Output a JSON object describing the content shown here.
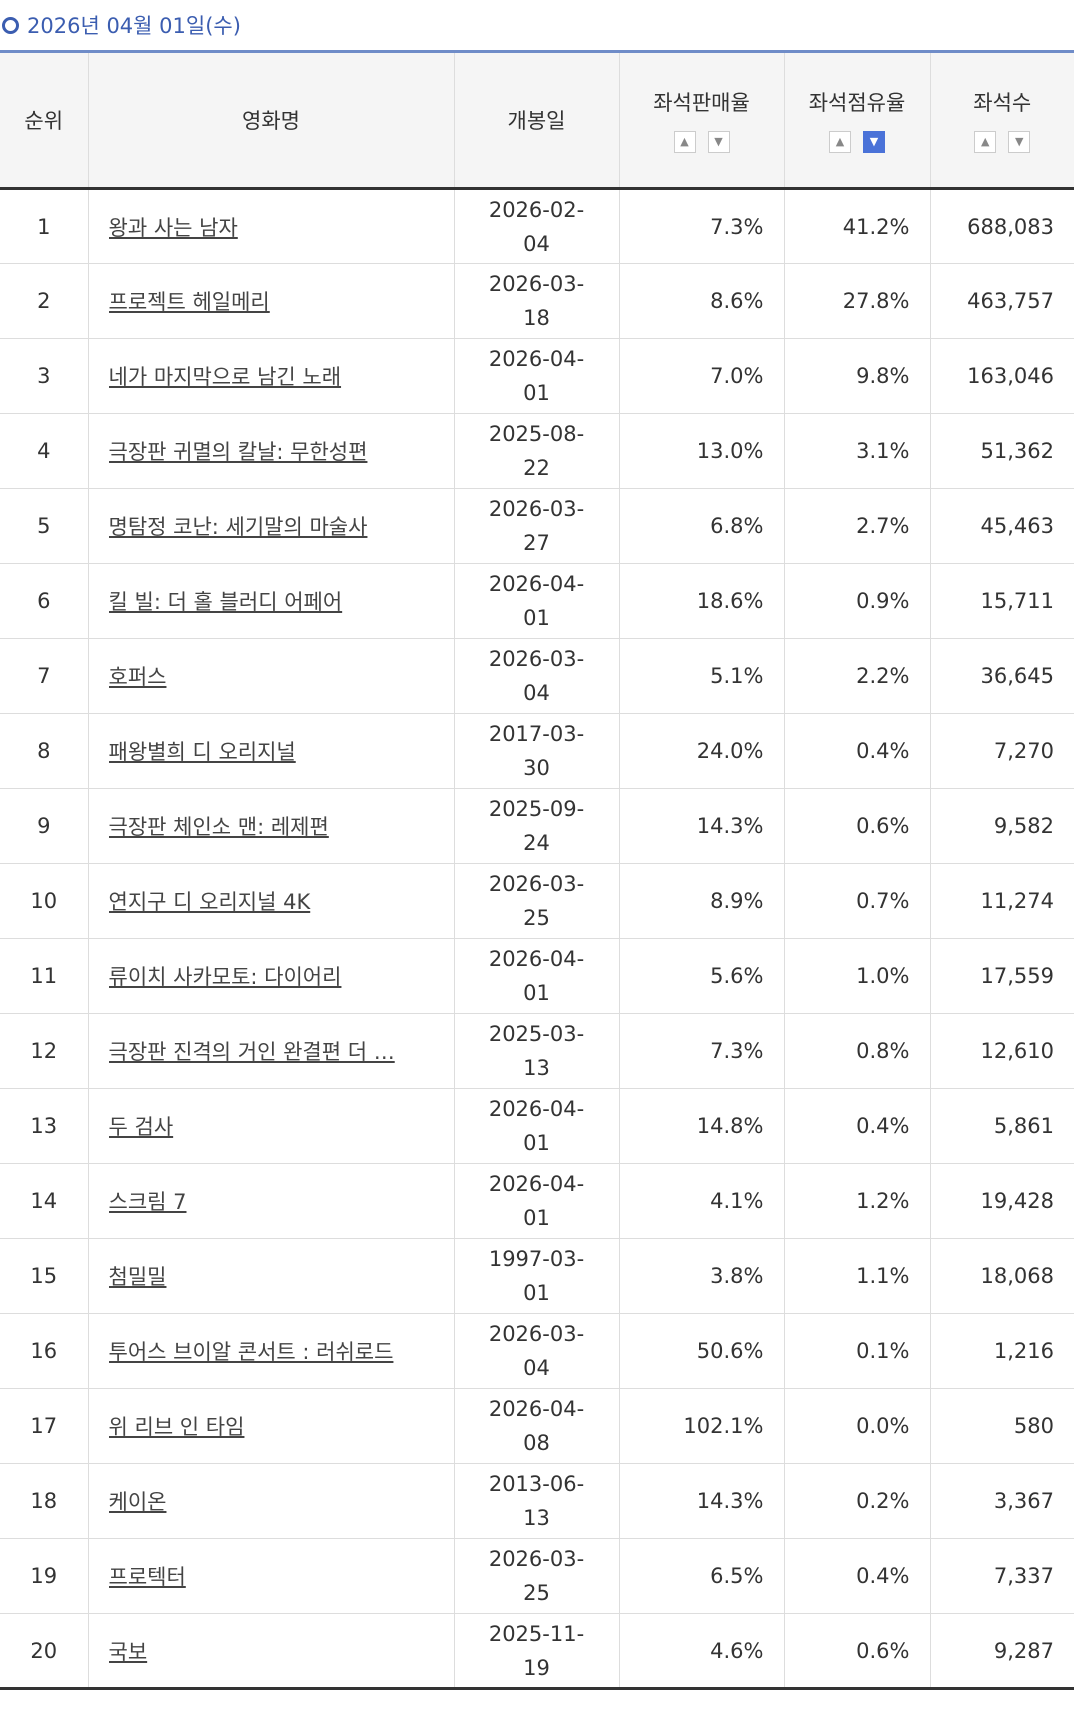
{
  "header": {
    "title": "2026년 04월 01일(수)"
  },
  "table": {
    "columns": [
      "순위",
      "영화명",
      "개봉일",
      "좌석판매율",
      "좌석점유율",
      "좌석수"
    ],
    "rows": [
      [
        1,
        "왕과 사는 남자",
        "2026-02-04",
        "7.3%",
        "41.2%",
        "688,083"
      ],
      [
        2,
        "프로젝트 헤일메리",
        "2026-03-18",
        "8.6%",
        "27.8%",
        "463,757"
      ],
      [
        3,
        "네가 마지막으로 남긴 노래",
        "2026-04-01",
        "7.0%",
        "9.8%",
        "163,046"
      ],
      [
        4,
        "극장판 귀멸의 칼날: 무한성편",
        "2025-08-22",
        "13.0%",
        "3.1%",
        "51,362"
      ],
      [
        5,
        "명탐정 코난: 세기말의 마술사",
        "2026-03-27",
        "6.8%",
        "2.7%",
        "45,463"
      ],
      [
        6,
        "킬 빌: 더 홀 블러디 어페어",
        "2026-04-01",
        "18.6%",
        "0.9%",
        "15,711"
      ],
      [
        7,
        "호퍼스",
        "2026-03-04",
        "5.1%",
        "2.2%",
        "36,645"
      ],
      [
        8,
        "패왕별희 디 오리지널",
        "2017-03-30",
        "24.0%",
        "0.4%",
        "7,270"
      ],
      [
        9,
        "극장판 체인소 맨: 레제편",
        "2025-09-24",
        "14.3%",
        "0.6%",
        "9,582"
      ],
      [
        10,
        "연지구 디 오리지널 4K",
        "2026-03-25",
        "8.9%",
        "0.7%",
        "11,274"
      ],
      [
        11,
        "류이치 사카모토: 다이어리",
        "2026-04-01",
        "5.6%",
        "1.0%",
        "17,559"
      ],
      [
        12,
        "극장판 진격의 거인 완결편 더 …",
        "2025-03-13",
        "7.3%",
        "0.8%",
        "12,610"
      ],
      [
        13,
        "두 검사",
        "2026-04-01",
        "14.8%",
        "0.4%",
        "5,861"
      ],
      [
        14,
        "스크림 7",
        "2026-04-01",
        "4.1%",
        "1.2%",
        "19,428"
      ],
      [
        15,
        "첨밀밀",
        "1997-03-01",
        "3.8%",
        "1.1%",
        "18,068"
      ],
      [
        16,
        "투어스 브이알 콘서트 : 러쉬로드",
        "2026-03-04",
        "50.6%",
        "0.1%",
        "1,216"
      ],
      [
        17,
        "위 리브 인 타임",
        "2026-04-08",
        "102.1%",
        "0.0%",
        "580"
      ],
      [
        18,
        "케이온",
        "2013-06-13",
        "14.3%",
        "0.2%",
        "3,367"
      ],
      [
        19,
        "프로텍터",
        "2026-03-25",
        "6.5%",
        "0.4%",
        "7,337"
      ],
      [
        20,
        "국보",
        "2025-11-19",
        "4.6%",
        "0.6%",
        "9,287"
      ]
    ]
  }
}
